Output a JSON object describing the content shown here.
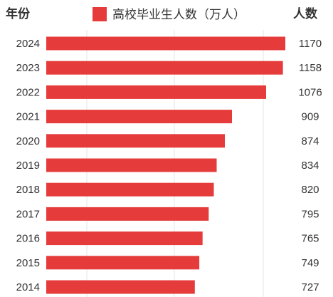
{
  "chart_data": {
    "type": "bar",
    "orientation": "horizontal",
    "y_header": "年份",
    "value_header": "人数",
    "legend": {
      "label": "高校毕业生人数（万人）",
      "color": "#e63b3b",
      "placement": "top-center"
    },
    "categories": [
      "2024",
      "2023",
      "2022",
      "2021",
      "2020",
      "2019",
      "2018",
      "2017",
      "2016",
      "2015",
      "2014"
    ],
    "series": [
      {
        "name": "高校毕业生人数（万人）",
        "color": "#e63b3b",
        "values": [
          1170,
          1158,
          1076,
          909,
          874,
          834,
          820,
          795,
          765,
          749,
          727
        ]
      }
    ],
    "grid": true
  }
}
